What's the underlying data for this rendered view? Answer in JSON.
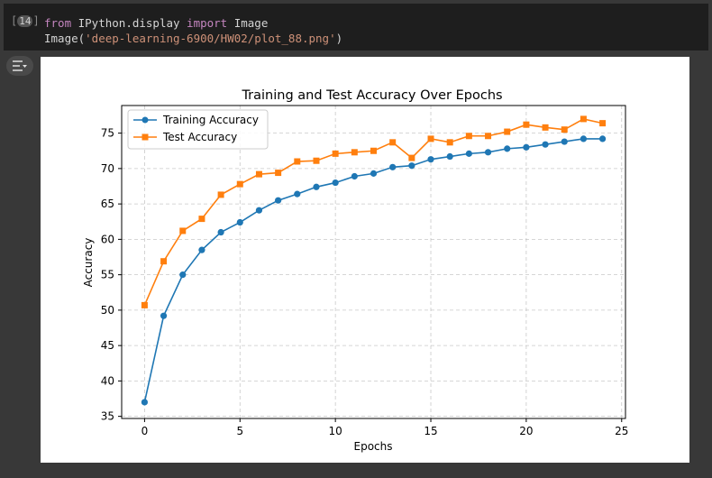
{
  "cell": {
    "execution_count": "14",
    "line1": {
      "kw_from": "from",
      "module": " IPython.display ",
      "kw_import": "import",
      "name": " Image"
    },
    "line2": {
      "call": "Image(",
      "arg": "'deep-learning-6900/HW02/plot_88.png'",
      "close": ")"
    }
  },
  "output_toggle_icon": "output-collapse-icon",
  "chart_data": {
    "type": "line",
    "title": "Training and Test Accuracy Over Epochs",
    "xlabel": "Epochs",
    "ylabel": "Accuracy",
    "xlim": [
      -1.2,
      25.2
    ],
    "ylim": [
      34.7,
      78.9
    ],
    "xticks": [
      0,
      5,
      10,
      15,
      20,
      25
    ],
    "yticks": [
      35,
      40,
      45,
      50,
      55,
      60,
      65,
      70,
      75
    ],
    "grid": true,
    "legend_position": "top-left",
    "x": [
      0,
      1,
      2,
      3,
      4,
      5,
      6,
      7,
      8,
      9,
      10,
      11,
      12,
      13,
      14,
      15,
      16,
      17,
      18,
      19,
      20,
      21,
      22,
      23,
      24
    ],
    "series": [
      {
        "name": "Training Accuracy",
        "color": "#1f77b4",
        "marker": "circle",
        "values": [
          37.0,
          49.2,
          55.0,
          58.5,
          61.0,
          62.4,
          64.1,
          65.5,
          66.4,
          67.4,
          68.0,
          68.9,
          69.3,
          70.2,
          70.4,
          71.3,
          71.7,
          72.1,
          72.3,
          72.8,
          73.0,
          73.4,
          73.8,
          74.2,
          74.2
        ]
      },
      {
        "name": "Test Accuracy",
        "color": "#ff7f0e",
        "marker": "square",
        "values": [
          50.7,
          56.9,
          61.2,
          62.9,
          66.3,
          67.8,
          69.2,
          69.4,
          71.0,
          71.1,
          72.1,
          72.3,
          72.5,
          73.7,
          71.5,
          74.2,
          73.7,
          74.6,
          74.6,
          75.2,
          76.2,
          75.8,
          75.5,
          77.0,
          76.4
        ]
      }
    ]
  }
}
